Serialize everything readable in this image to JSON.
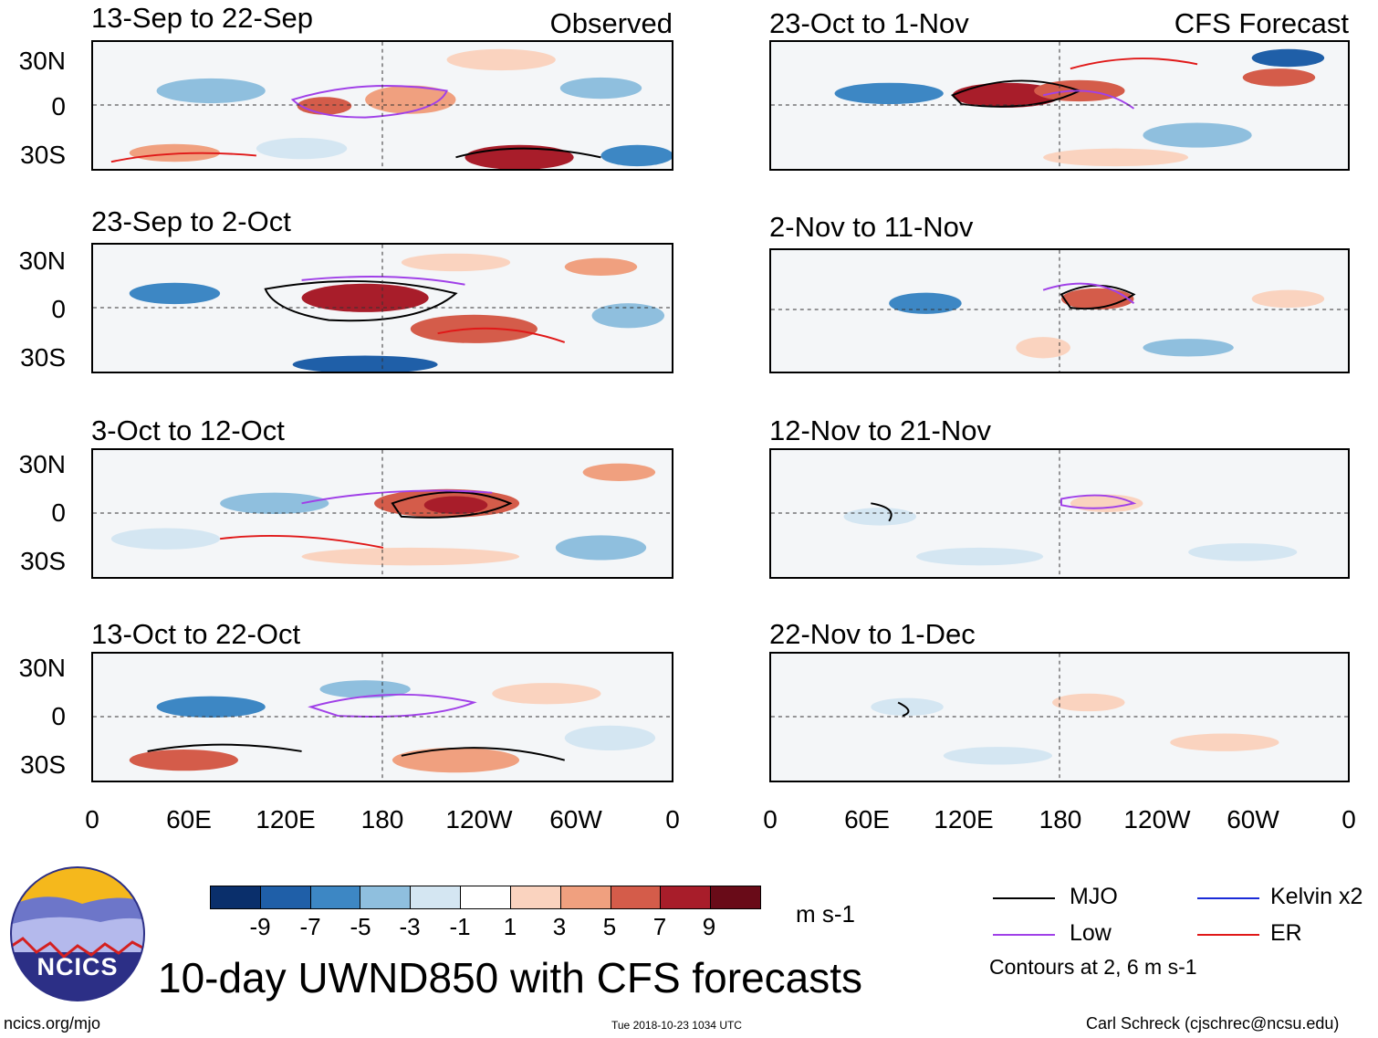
{
  "left_column": {
    "tag": "Observed",
    "panels": [
      {
        "title": "13-Sep to 22-Sep"
      },
      {
        "title": "23-Sep to 2-Oct"
      },
      {
        "title": "3-Oct to 12-Oct"
      },
      {
        "title": "13-Oct to 22-Oct"
      }
    ]
  },
  "right_column": {
    "tag": "CFS Forecast",
    "panels": [
      {
        "title": "23-Oct to 1-Nov"
      },
      {
        "title": "2-Nov to 11-Nov"
      },
      {
        "title": "12-Nov to 21-Nov"
      },
      {
        "title": "22-Nov to 1-Dec"
      }
    ]
  },
  "y_axis_labels": [
    "30N",
    "0",
    "30S"
  ],
  "x_axis_labels": [
    "0",
    "60E",
    "120E",
    "180",
    "120W",
    "60W",
    "0"
  ],
  "colorbar": {
    "labels": [
      "-9",
      "-7",
      "-5",
      "-3",
      "-1",
      "1",
      "3",
      "5",
      "7",
      "9"
    ],
    "colors": [
      "#0a2f6b",
      "#1f5fa8",
      "#3d87c4",
      "#8fbfde",
      "#d4e6f2",
      "#ffffff",
      "#fad3bf",
      "#f0a07f",
      "#d45c4a",
      "#a81d2a",
      "#690b18"
    ],
    "units": "m s-1"
  },
  "main_title": "10-day UWND850 with CFS forecasts",
  "logo": {
    "text": "NCICS"
  },
  "legend": {
    "items": [
      {
        "label": "MJO",
        "color": "#000000"
      },
      {
        "label": "Kelvin x2",
        "color": "#1a2bd8"
      },
      {
        "label": "Low",
        "color": "#a040e8"
      },
      {
        "label": "ER",
        "color": "#e01818"
      }
    ],
    "note": "Contours at 2, 6 m s-1"
  },
  "footer": {
    "url": "ncics.org/mjo",
    "timestamp": "Tue 2018-10-23 1034 UTC",
    "credit": "Carl Schreck (cjschrec@ncsu.edu)"
  }
}
